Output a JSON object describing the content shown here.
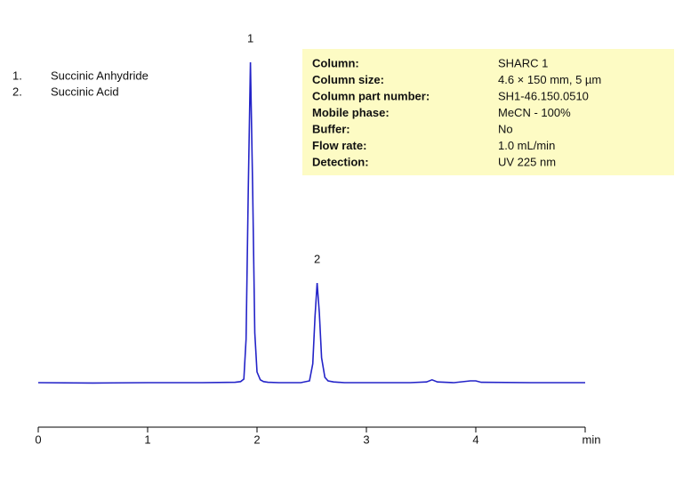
{
  "chart_data": {
    "type": "line",
    "x": [
      0,
      0.5,
      1.0,
      1.5,
      1.8,
      1.85,
      1.88,
      1.9,
      1.92,
      1.94,
      1.96,
      1.98,
      2.0,
      2.03,
      2.06,
      2.1,
      2.2,
      2.4,
      2.48,
      2.51,
      2.53,
      2.55,
      2.57,
      2.59,
      2.62,
      2.65,
      2.7,
      2.8,
      3.0,
      3.4,
      3.55,
      3.6,
      3.65,
      3.8,
      3.95,
      4.0,
      4.05,
      4.5,
      5.0
    ],
    "series": [
      {
        "color": "#2323c8",
        "values": [
          0,
          -0.1,
          0,
          0,
          0.1,
          0.3,
          1.0,
          12.2,
          54.6,
          90,
          54.6,
          14,
          3,
          0.8,
          0.3,
          0.1,
          0,
          0,
          0.5,
          5.3,
          18.5,
          28,
          19.5,
          7,
          1.5,
          0.5,
          0.2,
          0,
          0,
          0,
          0.2,
          0.8,
          0.2,
          0,
          0.5,
          0.5,
          0.1,
          0,
          0
        ]
      }
    ],
    "xlim": [
      0,
      5
    ],
    "xticks": [
      0,
      1,
      2,
      3,
      4,
      {
        "value": 5,
        "label": "min"
      }
    ],
    "ylim": [
      -12.5,
      92.5
    ],
    "peak_labels": [
      "1",
      "2"
    ],
    "compounds": [
      {
        "number": "1.",
        "name": "Succinic Anhydride"
      },
      {
        "number": "2.",
        "name": "Succinic Acid"
      }
    ],
    "info_box": [
      {
        "label": "Column:",
        "value": "SHARC 1"
      },
      {
        "label": "Column size:",
        "value": "4.6 × 150 mm, 5 µm"
      },
      {
        "label": "Column part number:",
        "value": "SH1-46.150.0510"
      },
      {
        "label": "Mobile phase:",
        "value": "MeCN - 100%"
      },
      {
        "label": "Buffer:",
        "value": "No"
      },
      {
        "label": "Flow rate:",
        "value": "1.0 mL/min"
      },
      {
        "label": "Detection:",
        "value": "UV 225 nm"
      }
    ]
  }
}
